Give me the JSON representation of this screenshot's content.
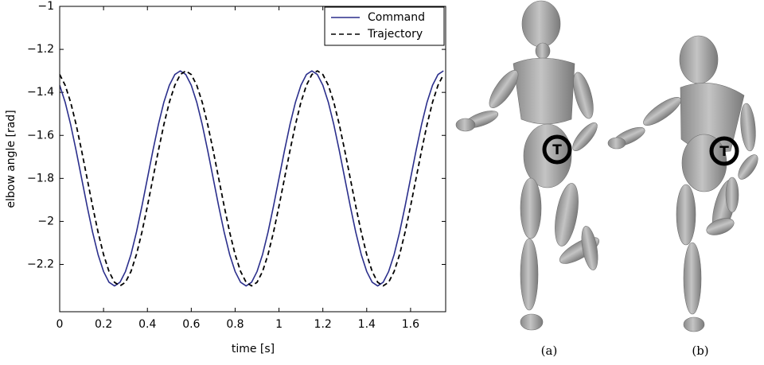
{
  "chart_data": {
    "type": "line",
    "xlabel": "time [s]",
    "ylabel": "elbow angle [rad]",
    "x": [
      0,
      0.025,
      0.05,
      0.075,
      0.1,
      0.125,
      0.15,
      0.175,
      0.2,
      0.225,
      0.25,
      0.275,
      0.3,
      0.325,
      0.35,
      0.375,
      0.4,
      0.425,
      0.45,
      0.475,
      0.5,
      0.525,
      0.55,
      0.575,
      0.6,
      0.625,
      0.65,
      0.675,
      0.7,
      0.725,
      0.75,
      0.775,
      0.8,
      0.825,
      0.85,
      0.875,
      0.9,
      0.925,
      0.95,
      0.975,
      1,
      1.025,
      1.05,
      1.075,
      1.1,
      1.125,
      1.15,
      1.175,
      1.2,
      1.225,
      1.25,
      1.275,
      1.3,
      1.325,
      1.35,
      1.375,
      1.4,
      1.425,
      1.45,
      1.475,
      1.5,
      1.525,
      1.55,
      1.575,
      1.6,
      1.625,
      1.65,
      1.675,
      1.7,
      1.725,
      1.75
    ],
    "series": [
      {
        "name": "Command",
        "color": "#2b2f8c",
        "linestyle": "solid",
        "values": [
          -1.367,
          -1.446,
          -1.55,
          -1.671,
          -1.8,
          -1.929,
          -2.05,
          -2.154,
          -2.233,
          -2.283,
          -2.3,
          -2.283,
          -2.233,
          -2.154,
          -2.05,
          -1.929,
          -1.8,
          -1.671,
          -1.55,
          -1.446,
          -1.367,
          -1.317,
          -1.3,
          -1.317,
          -1.367,
          -1.446,
          -1.55,
          -1.671,
          -1.8,
          -1.929,
          -2.05,
          -2.154,
          -2.233,
          -2.283,
          -2.3,
          -2.283,
          -2.233,
          -2.154,
          -2.05,
          -1.929,
          -1.8,
          -1.671,
          -1.55,
          -1.446,
          -1.367,
          -1.317,
          -1.3,
          -1.317,
          -1.367,
          -1.446,
          -1.55,
          -1.671,
          -1.8,
          -1.929,
          -2.05,
          -2.154,
          -2.233,
          -2.283,
          -2.3,
          -2.283,
          -2.233,
          -2.154,
          -2.05,
          -1.929,
          -1.8,
          -1.671,
          -1.55,
          -1.446,
          -1.367,
          -1.317,
          -1.3
        ]
      },
      {
        "name": "Trajectory",
        "color": "#000000",
        "linestyle": "dashed",
        "values": [
          -1.317,
          -1.367,
          -1.446,
          -1.55,
          -1.671,
          -1.8,
          -1.929,
          -2.05,
          -2.154,
          -2.233,
          -2.283,
          -2.3,
          -2.283,
          -2.233,
          -2.154,
          -2.05,
          -1.929,
          -1.8,
          -1.671,
          -1.55,
          -1.446,
          -1.367,
          -1.317,
          -1.3,
          -1.317,
          -1.367,
          -1.446,
          -1.55,
          -1.671,
          -1.8,
          -1.929,
          -2.05,
          -2.154,
          -2.233,
          -2.283,
          -2.3,
          -2.283,
          -2.233,
          -2.154,
          -2.05,
          -1.929,
          -1.8,
          -1.671,
          -1.55,
          -1.446,
          -1.367,
          -1.317,
          -1.3,
          -1.317,
          -1.367,
          -1.446,
          -1.55,
          -1.671,
          -1.8,
          -1.929,
          -2.05,
          -2.154,
          -2.233,
          -2.283,
          -2.3,
          -2.283,
          -2.233,
          -2.154,
          -2.05,
          -1.929,
          -1.8,
          -1.671,
          -1.55,
          -1.446,
          -1.367,
          -1.317
        ]
      }
    ],
    "xlim": [
      0,
      1.76
    ],
    "ylim": [
      -2.42,
      -1
    ],
    "xticks": [
      0,
      0.2,
      0.4,
      0.6,
      0.8,
      1,
      1.2,
      1.4,
      1.6
    ],
    "yticks": [
      {
        "value": -2.2,
        "label": "−2.2"
      },
      {
        "value": -2,
        "label": "−2"
      },
      {
        "value": -1.8,
        "label": "−1.8"
      },
      {
        "value": -1.6,
        "label": "−1.6"
      },
      {
        "value": -1.4,
        "label": "−1.4"
      },
      {
        "value": -1.2,
        "label": "−1.2"
      },
      {
        "value": -1,
        "label": "−1"
      }
    ],
    "legend": "upper right"
  },
  "figures": [
    {
      "marker": "T",
      "caption": "(a)"
    },
    {
      "marker": "T",
      "caption": "(b)"
    }
  ]
}
